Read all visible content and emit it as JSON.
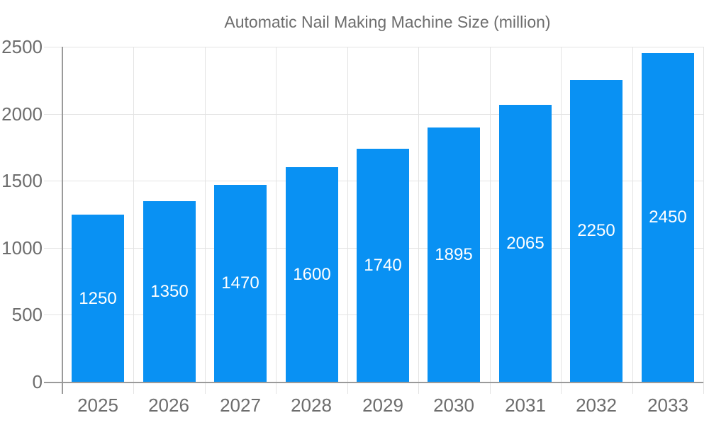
{
  "chart_data": {
    "type": "bar",
    "title": "Automatic Nail Making Machine Size (million)",
    "categories": [
      "2025",
      "2026",
      "2027",
      "2028",
      "2029",
      "2030",
      "2031",
      "2032",
      "2033"
    ],
    "values": [
      1250,
      1350,
      1470,
      1600,
      1740,
      1895,
      2065,
      2250,
      2450
    ],
    "value_labels": [
      "1250",
      "1350",
      "1470",
      "1600",
      "1740",
      "1895",
      "2065",
      "2250",
      "2450"
    ],
    "xlabel": "",
    "ylabel": "",
    "ylim": [
      0,
      2500
    ],
    "yticks": [
      0,
      500,
      1000,
      1500,
      2000,
      2500
    ],
    "grid": true,
    "legend_position": "top",
    "colors": {
      "bar": "#0991f3",
      "value_label": "#ffffff",
      "axis_label": "#6d6d6d",
      "gridline": "#e3e3e3",
      "axis_line": "#9a9a9a"
    }
  }
}
